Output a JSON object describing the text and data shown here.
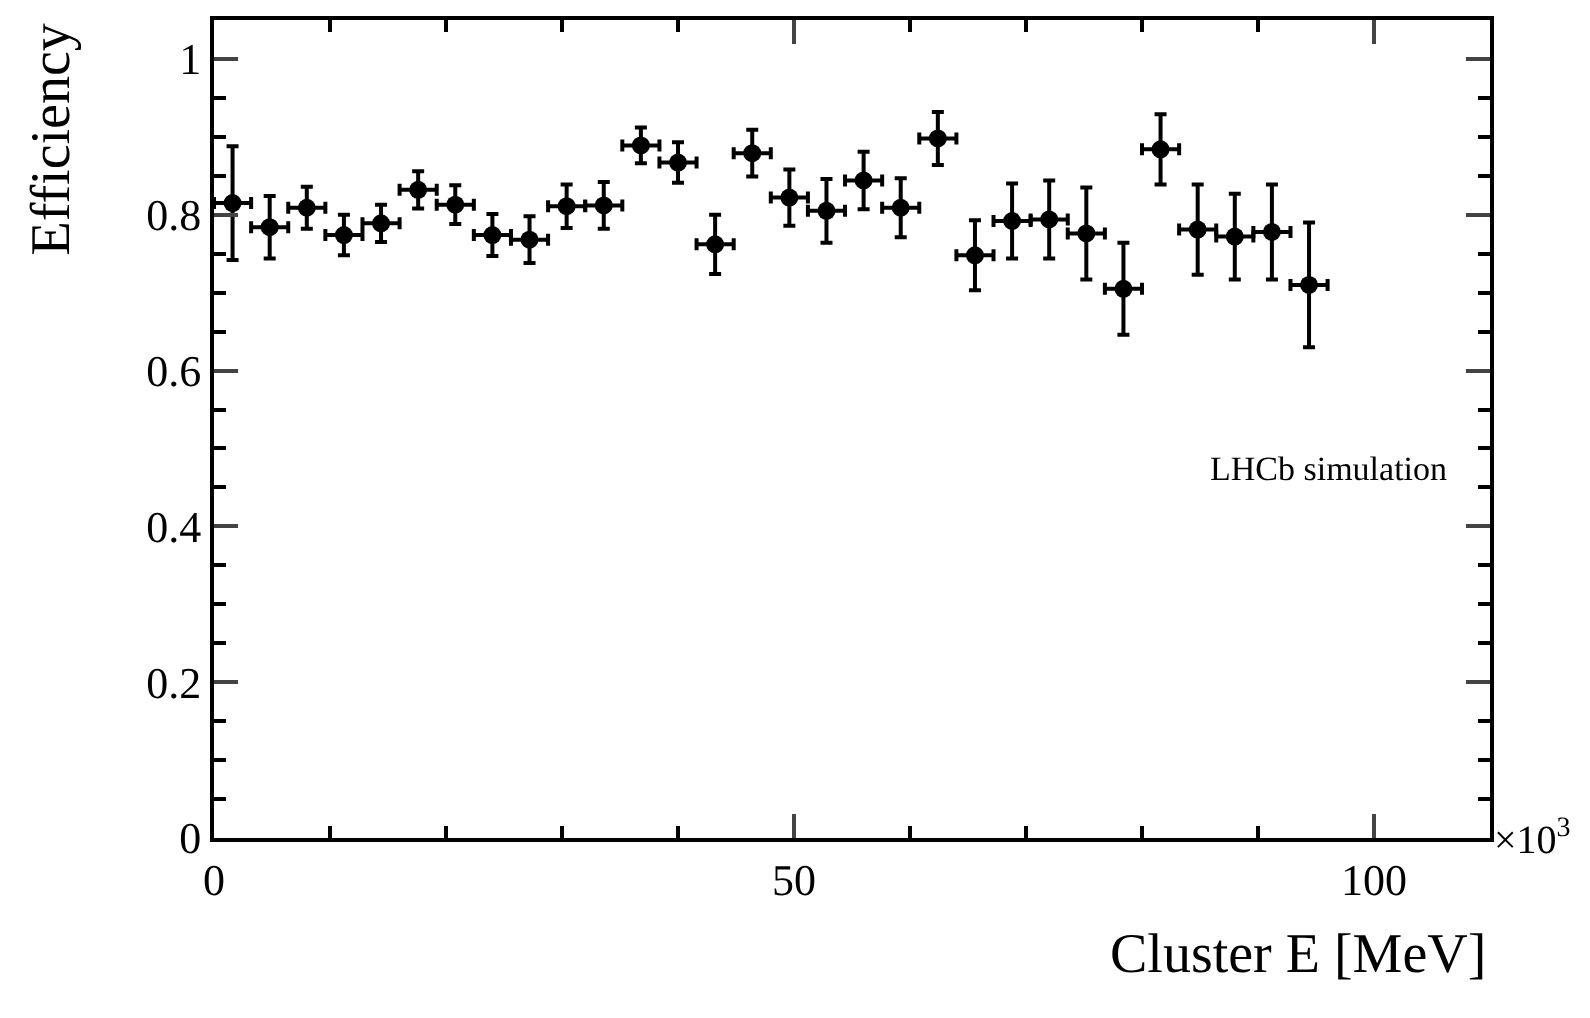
{
  "chart_data": {
    "type": "scatter",
    "xlabel": "Cluster E [MeV]",
    "ylabel": "Efficiency",
    "x": [
      1.6,
      4.8,
      8.0,
      11.2,
      14.4,
      17.6,
      20.8,
      24.0,
      27.2,
      30.4,
      33.6,
      36.8,
      40.0,
      43.2,
      46.4,
      49.6,
      52.8,
      56.0,
      59.2,
      62.4,
      65.6,
      68.8,
      72.0,
      75.2,
      78.4,
      81.6,
      84.8,
      88.0,
      91.2,
      94.4
    ],
    "series": [
      {
        "color": "#000000",
        "values": [
          0.815,
          0.784,
          0.809,
          0.774,
          0.789,
          0.832,
          0.813,
          0.774,
          0.768,
          0.811,
          0.812,
          0.889,
          0.867,
          0.762,
          0.879,
          0.822,
          0.805,
          0.844,
          0.809,
          0.898,
          0.748,
          0.792,
          0.794,
          0.776,
          0.705,
          0.884,
          0.781,
          0.772,
          0.778,
          0.71
        ],
        "errors": [
          0.073,
          0.04,
          0.027,
          0.026,
          0.024,
          0.024,
          0.025,
          0.027,
          0.03,
          0.028,
          0.03,
          0.023,
          0.026,
          0.038,
          0.03,
          0.036,
          0.041,
          0.037,
          0.038,
          0.034,
          0.045,
          0.048,
          0.05,
          0.059,
          0.059,
          0.045,
          0.058,
          0.055,
          0.061,
          0.08
        ],
        "xerrors": [
          1.6,
          1.6,
          1.6,
          1.6,
          1.6,
          1.6,
          1.6,
          1.6,
          1.6,
          1.6,
          1.6,
          1.6,
          1.6,
          1.6,
          1.6,
          1.6,
          1.6,
          1.6,
          1.6,
          1.6,
          1.6,
          1.6,
          1.6,
          1.6,
          1.6,
          1.6,
          1.6,
          1.6,
          1.6,
          1.6
        ]
      }
    ],
    "xlim": [
      0,
      110
    ],
    "xticks": [
      0,
      50,
      100
    ],
    "ylim": [
      0,
      1.05
    ],
    "yticks": [
      0,
      0.2,
      0.4,
      0.6,
      0.8,
      1
    ],
    "marker": "circle",
    "annotations": [
      "LHCb simulation",
      "×10$^{3}$"
    ]
  }
}
